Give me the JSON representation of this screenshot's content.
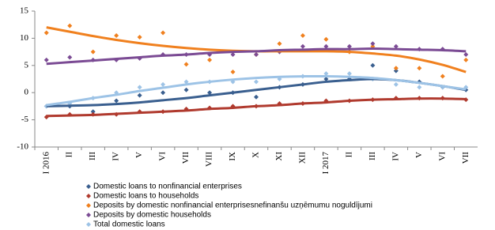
{
  "chart_data": {
    "type": "scatter-trend",
    "categories": [
      "I 2016",
      "II",
      "III",
      "IV",
      "V",
      "VI",
      "VII",
      "VIII",
      "IX",
      "X",
      "XI",
      "XII",
      "I 2017",
      "II",
      "III",
      "IV",
      "V",
      "VI",
      "VII"
    ],
    "ylim": [
      -10,
      15
    ],
    "yticks": [
      -10,
      -5,
      0,
      5,
      10,
      15
    ],
    "grid": false,
    "legend": "bottom",
    "series": [
      {
        "name": "Domestic loans to nonfinancial enterprises",
        "color": "#3a5f8f",
        "values": [
          -2.5,
          -2.5,
          -3.5,
          -1.5,
          -0.5,
          0,
          0.5,
          0,
          0,
          -0.8,
          1,
          1.5,
          2.5,
          2.5,
          5,
          4,
          2,
          1,
          0.5
        ],
        "trend": [
          -2.5,
          -2.4,
          -2.3,
          -2.1,
          -1.8,
          -1.4,
          -1,
          -0.5,
          0,
          0.5,
          1,
          1.5,
          2,
          2.3,
          2.5,
          2.3,
          1.8,
          1.2,
          0.5
        ]
      },
      {
        "name": "Domestic loans to households",
        "color": "#b03a2e",
        "values": [
          -4.5,
          -4,
          -4,
          -4,
          -3.5,
          -3.5,
          -3,
          -2.8,
          -2.5,
          -2.5,
          -2,
          -2,
          -1.5,
          -1.5,
          -1.3,
          -1,
          -1,
          -1,
          -1.3
        ],
        "trend": [
          -4.3,
          -4.2,
          -4.1,
          -3.9,
          -3.7,
          -3.5,
          -3.3,
          -3,
          -2.8,
          -2.5,
          -2.3,
          -2,
          -1.8,
          -1.5,
          -1.3,
          -1.2,
          -1.1,
          -1.1,
          -1.2
        ]
      },
      {
        "name": "Deposits by domestic nonfinancial enterprisesnefinanšu uzņēmumu  noguldījumi",
        "color": "#f0801e",
        "values": [
          11,
          12.3,
          7.5,
          10.5,
          10.2,
          11,
          5.2,
          6,
          3.8,
          7,
          9,
          10.5,
          9.8,
          7.5,
          8.5,
          4.5,
          4.5,
          3,
          6
        ],
        "trend": [
          12,
          11.2,
          10.4,
          9.7,
          9.1,
          8.6,
          8.2,
          7.9,
          7.7,
          7.6,
          7.6,
          7.6,
          7.6,
          7.5,
          7.2,
          6.8,
          6.1,
          5.1,
          3.8
        ]
      },
      {
        "name": "Deposits by domestic households",
        "color": "#7b4b94",
        "values": [
          6,
          6.5,
          6,
          6,
          6.3,
          7,
          7,
          7,
          7,
          7,
          7.5,
          8.5,
          8.5,
          8.5,
          9,
          8.5,
          8,
          8,
          7
        ],
        "trend": [
          5.3,
          5.6,
          5.9,
          6.2,
          6.5,
          6.8,
          7,
          7.3,
          7.5,
          7.6,
          7.8,
          7.9,
          8,
          8,
          8.1,
          8,
          7.9,
          7.8,
          7.6
        ]
      },
      {
        "name": "Total domestic loans",
        "color": "#9dc3e6",
        "values": [
          -2.5,
          -2,
          -1,
          0,
          1,
          1.5,
          2,
          2,
          2,
          2,
          2.5,
          3,
          3.5,
          3.5,
          2.5,
          1.5,
          1,
          1,
          1
        ],
        "trend": [
          -2.3,
          -1.7,
          -1,
          -0.4,
          0.3,
          0.9,
          1.5,
          2,
          2.4,
          2.7,
          2.9,
          3,
          3,
          2.9,
          2.7,
          2.3,
          1.8,
          1.2,
          0.6
        ]
      }
    ]
  }
}
